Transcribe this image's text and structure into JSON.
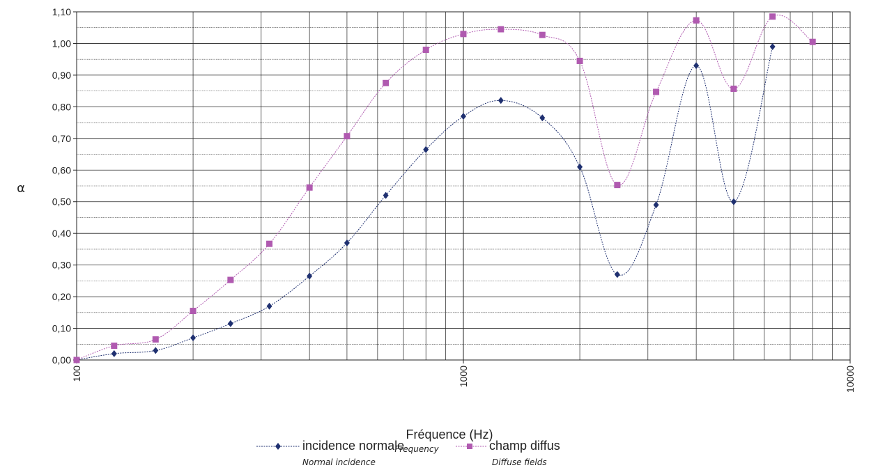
{
  "chart_data": {
    "type": "line",
    "x_scale": "log",
    "xlim": [
      100,
      10000
    ],
    "ylim": [
      0,
      1.1
    ],
    "ylabel": "α",
    "xlabel": "Fréquence  (Hz)",
    "xlabel_sub": "Frequency",
    "x_ticks": [
      "100",
      "1000",
      "10000"
    ],
    "y_ticks": [
      "0,00",
      "0,10",
      "0,20",
      "0,30",
      "0,40",
      "0,50",
      "0,60",
      "0,70",
      "0,80",
      "0,90",
      "1,00",
      "1,10"
    ],
    "grid": true,
    "x": [
      100,
      125,
      160,
      200,
      250,
      315,
      400,
      500,
      630,
      800,
      1000,
      1250,
      1600,
      2000,
      2500,
      3150,
      4000,
      5000,
      6300,
      8000
    ],
    "series": [
      {
        "name": "incidence normale",
        "subtitle": "Normal incidence",
        "color": "#1f3070",
        "marker": "diamond",
        "values": [
          0.0,
          0.02,
          0.03,
          0.07,
          0.115,
          0.17,
          0.265,
          0.37,
          0.52,
          0.665,
          0.77,
          0.82,
          0.765,
          0.61,
          0.27,
          0.49,
          0.93,
          0.5,
          0.99,
          null
        ]
      },
      {
        "name": "champ diffus",
        "subtitle": "Diffuse fields",
        "color": "#b05ab0",
        "marker": "square",
        "values": [
          0.0,
          0.045,
          0.065,
          0.155,
          0.253,
          0.367,
          0.545,
          0.707,
          0.875,
          0.98,
          1.03,
          1.045,
          1.027,
          0.945,
          0.553,
          0.847,
          1.073,
          0.857,
          1.085,
          1.005
        ]
      }
    ],
    "legend_position": "bottom-center"
  }
}
